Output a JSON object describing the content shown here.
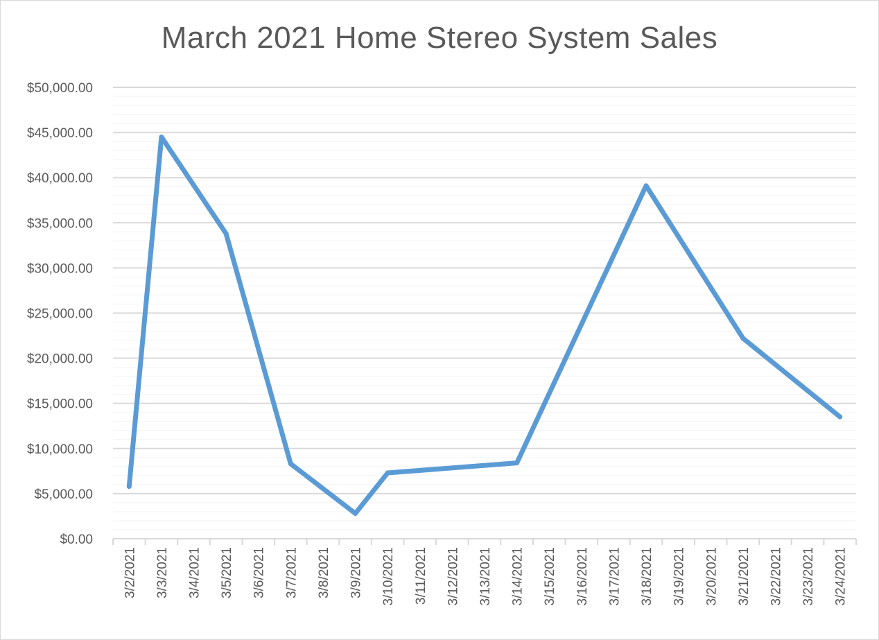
{
  "chart_data": {
    "type": "line",
    "title": "March 2021 Home Stereo System Sales",
    "xlabel": "",
    "ylabel": "",
    "ylim": [
      0,
      50000
    ],
    "ytick_values": [
      0,
      5000,
      10000,
      15000,
      20000,
      25000,
      30000,
      35000,
      40000,
      45000,
      50000
    ],
    "ytick_labels": [
      "$0.00",
      "$5,000.00",
      "$10,000.00",
      "$15,000.00",
      "$20,000.00",
      "$25,000.00",
      "$30,000.00",
      "$35,000.00",
      "$40,000.00",
      "$45,000.00",
      "$50,000.00"
    ],
    "minor_grid_step": 1000,
    "grid": true,
    "legend": "none",
    "categories": [
      "3/2/2021",
      "3/3/2021",
      "3/4/2021",
      "3/5/2021",
      "3/6/2021",
      "3/7/2021",
      "3/8/2021",
      "3/9/2021",
      "3/10/2021",
      "3/11/2021",
      "3/12/2021",
      "3/13/2021",
      "3/14/2021",
      "3/15/2021",
      "3/16/2021",
      "3/17/2021",
      "3/18/2021",
      "3/19/2021",
      "3/20/2021",
      "3/21/2021",
      "3/22/2021",
      "3/23/2021",
      "3/24/2021"
    ],
    "points": [
      {
        "x": "3/2/2021",
        "y": 5800
      },
      {
        "x": "3/3/2021",
        "y": 44500
      },
      {
        "x": "3/5/2021",
        "y": 33800
      },
      {
        "x": "3/7/2021",
        "y": 8300
      },
      {
        "x": "3/9/2021",
        "y": 2800
      },
      {
        "x": "3/10/2021",
        "y": 7300
      },
      {
        "x": "3/14/2021",
        "y": 8400
      },
      {
        "x": "3/18/2021",
        "y": 39100
      },
      {
        "x": "3/21/2021",
        "y": 22200
      },
      {
        "x": "3/24/2021",
        "y": 13500
      }
    ],
    "colors": {
      "line": "#5b9bd5",
      "major_grid": "#d9d9d9",
      "minor_grid": "#f2f2f2",
      "axis": "#d9d9d9",
      "text": "#595959"
    }
  }
}
